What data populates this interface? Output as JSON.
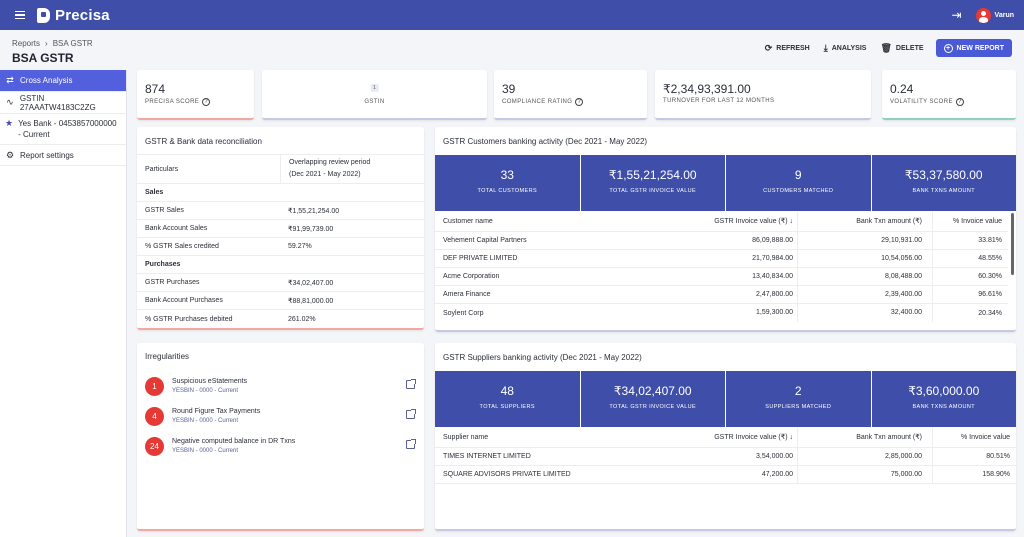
{
  "app": {
    "name": "Precisa",
    "user": "Varun"
  },
  "header": {
    "breadcrumb": [
      "Reports",
      "BSA GSTR"
    ],
    "title": "BSA GSTR",
    "actions": {
      "refresh": "REFRESH",
      "analysis": "ANALYSIS",
      "delete": "DELETE",
      "new_report": "NEW REPORT"
    }
  },
  "sidebar": {
    "items": [
      {
        "label": "Cross Analysis",
        "icon": "swap-icon"
      },
      {
        "label": "GSTIN 27AAATW4183C2ZG",
        "icon": "pulse-icon"
      },
      {
        "label": "Yes Bank - 0453857000000 - Current",
        "icon": "star-icon"
      },
      {
        "label": "Report settings",
        "icon": "gear-icon"
      }
    ]
  },
  "stats": {
    "precisa_score": {
      "value": "874",
      "label": "PRECISA SCORE"
    },
    "gstin": {
      "chip": "1",
      "label": "GSTIN"
    },
    "compliance": {
      "value": "39",
      "label": "COMPLIANCE RATING"
    },
    "turnover": {
      "value": "₹2,34,93,391.00",
      "label": "TURNOVER FOR LAST 12 MONTHS"
    },
    "volatility": {
      "value": "0.24",
      "label": "VOLATILITY SCORE"
    },
    "colors": {
      "precisa": "#f2a7a0",
      "gstin": "#c5c9e6",
      "compliance": "#c5c9e6",
      "turnover": "#c5c9e6",
      "volatility": "#8fd3b6"
    }
  },
  "recon": {
    "title": "GSTR & Bank data reconciliation",
    "head": {
      "particulars": "Particulars",
      "period_line1": "Overlapping review period",
      "period_line2": "(Dec 2021 - May 2022)"
    },
    "sales_label": "Sales",
    "sales": [
      {
        "label": "GSTR Sales",
        "value": "₹1,55,21,254.00"
      },
      {
        "label": "Bank Account Sales",
        "value": "₹91,99,739.00"
      },
      {
        "label": "% GSTR Sales credited",
        "value": "59.27%"
      }
    ],
    "purchases_label": "Purchases",
    "purchases": [
      {
        "label": "GSTR Purchases",
        "value": "₹34,02,407.00"
      },
      {
        "label": "Bank Account Purchases",
        "value": "₹88,81,000.00"
      },
      {
        "label": "% GSTR Purchases debited",
        "value": "261.02%"
      }
    ]
  },
  "irregularities": {
    "title": "Irregularities",
    "items": [
      {
        "count": "1",
        "title": "Suspicious eStatements",
        "sub": "YESBIN - 0000 - Current"
      },
      {
        "count": "4",
        "title": "Round Figure Tax Payments",
        "sub": "YESBIN - 0000 - Current"
      },
      {
        "count": "24",
        "title": "Negative computed balance in DR Txns",
        "sub": "YESBIN - 0000 - Current"
      }
    ]
  },
  "customers": {
    "title": "GSTR Customers banking activity (Dec 2021 - May 2022)",
    "kpis": [
      {
        "value": "33",
        "label": "TOTAL CUSTOMERS"
      },
      {
        "value": "₹1,55,21,254.00",
        "label": "TOTAL GSTR INVOICE VALUE"
      },
      {
        "value": "9",
        "label": "CUSTOMERS MATCHED"
      },
      {
        "value": "₹53,37,580.00",
        "label": "BANK TXNS AMOUNT"
      }
    ],
    "columns": [
      "Customer name",
      "GSTR Invoice value (₹) ↓",
      "Bank Txn amount (₹)",
      "% Invoice value"
    ],
    "rows": [
      [
        "Vehement Capital Partners",
        "86,09,888.00",
        "29,10,931.00",
        "33.81%"
      ],
      [
        "DEF PRIVATE LIMITED",
        "21,70,984.00",
        "10,54,056.00",
        "48.55%"
      ],
      [
        "Acme Corporation",
        "13,40,834.00",
        "8,08,488.00",
        "60.30%"
      ],
      [
        "Amera Finance",
        "2,47,800.00",
        "2,39,400.00",
        "96.61%"
      ],
      [
        "Soylent Corp",
        "1,59,300.00",
        "32,400.00",
        "20.34%"
      ]
    ]
  },
  "suppliers": {
    "title": "GSTR Suppliers banking activity (Dec 2021 - May 2022)",
    "kpis": [
      {
        "value": "48",
        "label": "TOTAL SUPPLIERS"
      },
      {
        "value": "₹34,02,407.00",
        "label": "TOTAL GSTR INVOICE VALUE"
      },
      {
        "value": "2",
        "label": "SUPPLIERS MATCHED"
      },
      {
        "value": "₹3,60,000.00",
        "label": "BANK TXNS AMOUNT"
      }
    ],
    "columns": [
      "Supplier name",
      "GSTR Invoice value (₹) ↓",
      "Bank Txn amount (₹)",
      "% Invoice value"
    ],
    "rows": [
      [
        "TIMES INTERNET LIMITED",
        "3,54,000.00",
        "2,85,000.00",
        "80.51%"
      ],
      [
        "SQUARE ADVISORS PRIVATE LIMITED",
        "47,200.00",
        "75,000.00",
        "158.90%"
      ]
    ]
  },
  "theme": {
    "primary": "#3f4fa9",
    "accent": "#4a5ad6",
    "danger": "#e53935"
  }
}
